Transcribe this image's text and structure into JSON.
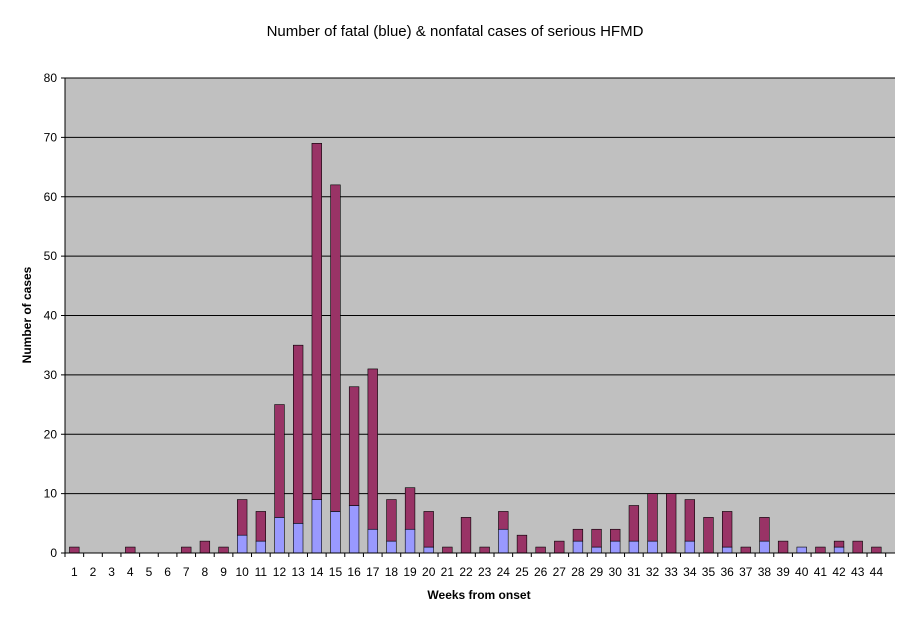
{
  "chart_data": {
    "type": "bar",
    "stacked": true,
    "title": "Number of fatal (blue) & nonfatal cases of serious HFMD",
    "xlabel": "Weeks from onset",
    "ylabel": "Number of cases",
    "ylim": [
      0,
      80
    ],
    "yticks": [
      0,
      10,
      20,
      30,
      40,
      50,
      60,
      70,
      80
    ],
    "grid": true,
    "legend": "none",
    "plot_background": "#c0c0c0",
    "categories": [
      "1",
      "2",
      "3",
      "4",
      "5",
      "6",
      "7",
      "8",
      "9",
      "10",
      "11",
      "12",
      "13",
      "14",
      "15",
      "16",
      "17",
      "18",
      "19",
      "20",
      "21",
      "22",
      "23",
      "24",
      "25",
      "26",
      "27",
      "28",
      "29",
      "30",
      "31",
      "32",
      "33",
      "34",
      "35",
      "36",
      "37",
      "38",
      "39",
      "40",
      "41",
      "42",
      "43",
      "44"
    ],
    "series": [
      {
        "color": "#9999ff",
        "values": [
          0,
          0,
          0,
          0,
          0,
          0,
          0,
          0,
          0,
          3,
          2,
          6,
          5,
          9,
          7,
          8,
          4,
          2,
          4,
          1,
          0,
          0,
          0,
          4,
          0,
          0,
          0,
          2,
          1,
          2,
          2,
          2,
          0,
          2,
          0,
          1,
          0,
          2,
          0,
          1,
          0,
          1,
          0,
          0
        ]
      },
      {
        "color": "#993366",
        "values": [
          1,
          0,
          0,
          1,
          0,
          0,
          1,
          2,
          1,
          6,
          5,
          19,
          30,
          60,
          55,
          20,
          27,
          7,
          7,
          6,
          1,
          6,
          1,
          3,
          3,
          1,
          2,
          2,
          3,
          2,
          6,
          8,
          10,
          7,
          6,
          6,
          1,
          4,
          2,
          0,
          1,
          1,
          2,
          1
        ]
      }
    ]
  }
}
